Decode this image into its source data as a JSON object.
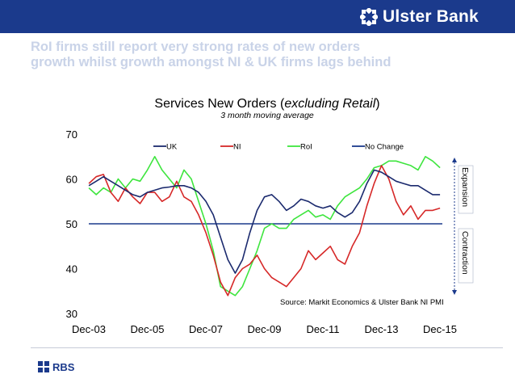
{
  "header": {
    "brand_name": "Ulster Bank",
    "brand_color": "#1b3a8c",
    "logo_icon": "ulster-bank-daisy-icon"
  },
  "headline": {
    "line1": "RoI firms still report very strong rates of new orders",
    "line2": "growth whilst growth amongst NI & UK firms lags behind"
  },
  "footer": {
    "brand_name": "RBS",
    "logo_icon": "rbs-daisy-icon"
  },
  "chart_data": {
    "type": "line",
    "title_main": "Services New Orders (",
    "title_italic": "excluding Retail",
    "title_close": ")",
    "subtitle": "3 month moving average",
    "source": "Source: Markit Economics & Ulster Bank NI PMI",
    "ylim": [
      30,
      70
    ],
    "yticks": [
      "30",
      "40",
      "50",
      "60",
      "70"
    ],
    "xlim": [
      2003.917,
      2016.0
    ],
    "xticks": [
      {
        "label": "Dec-03",
        "x": 2003.917
      },
      {
        "label": "Dec-05",
        "x": 2005.917
      },
      {
        "label": "Dec-07",
        "x": 2007.917
      },
      {
        "label": "Dec-09",
        "x": 2009.917
      },
      {
        "label": "Dec-11",
        "x": 2011.917
      },
      {
        "label": "Dec-13",
        "x": 2013.917
      },
      {
        "label": "Dec-15",
        "x": 2015.917
      }
    ],
    "annotations": {
      "expansion": "Expansion",
      "contraction": "Contraction"
    },
    "legend_position": "top",
    "reference_line": {
      "name": "No Change",
      "value": 50,
      "color": "#1b3a8c"
    },
    "series": [
      {
        "name": "UK",
        "color": "#1b2a6e",
        "points": [
          [
            2003.92,
            58.5
          ],
          [
            2004.17,
            59.5
          ],
          [
            2004.42,
            60.5
          ],
          [
            2004.67,
            59.5
          ],
          [
            2004.92,
            58.5
          ],
          [
            2005.17,
            57.5
          ],
          [
            2005.42,
            56.5
          ],
          [
            2005.67,
            56.0
          ],
          [
            2005.92,
            57.0
          ],
          [
            2006.17,
            57.5
          ],
          [
            2006.42,
            58.0
          ],
          [
            2006.67,
            58.2
          ],
          [
            2006.92,
            58.5
          ],
          [
            2007.17,
            58.5
          ],
          [
            2007.42,
            58.0
          ],
          [
            2007.67,
            57.0
          ],
          [
            2007.92,
            55.0
          ],
          [
            2008.17,
            52.0
          ],
          [
            2008.42,
            47.0
          ],
          [
            2008.67,
            42.0
          ],
          [
            2008.92,
            39.0
          ],
          [
            2009.17,
            42.0
          ],
          [
            2009.42,
            48.0
          ],
          [
            2009.67,
            53.0
          ],
          [
            2009.92,
            56.0
          ],
          [
            2010.17,
            56.5
          ],
          [
            2010.42,
            55.0
          ],
          [
            2010.67,
            53.0
          ],
          [
            2010.92,
            54.0
          ],
          [
            2011.17,
            55.5
          ],
          [
            2011.42,
            55.0
          ],
          [
            2011.67,
            54.0
          ],
          [
            2011.92,
            53.5
          ],
          [
            2012.17,
            54.0
          ],
          [
            2012.42,
            52.5
          ],
          [
            2012.67,
            51.5
          ],
          [
            2012.92,
            52.5
          ],
          [
            2013.17,
            55.0
          ],
          [
            2013.42,
            59.0
          ],
          [
            2013.67,
            62.0
          ],
          [
            2013.92,
            61.5
          ],
          [
            2014.17,
            60.5
          ],
          [
            2014.42,
            59.5
          ],
          [
            2014.67,
            59.0
          ],
          [
            2014.92,
            58.5
          ],
          [
            2015.17,
            58.5
          ],
          [
            2015.42,
            57.5
          ],
          [
            2015.67,
            56.5
          ],
          [
            2015.92,
            56.5
          ]
        ]
      },
      {
        "name": "NI",
        "color": "#d62828",
        "points": [
          [
            2003.92,
            59.0
          ],
          [
            2004.17,
            60.5
          ],
          [
            2004.42,
            61.0
          ],
          [
            2004.67,
            57.0
          ],
          [
            2004.92,
            55.0
          ],
          [
            2005.17,
            58.0
          ],
          [
            2005.42,
            56.0
          ],
          [
            2005.67,
            54.5
          ],
          [
            2005.92,
            57.0
          ],
          [
            2006.17,
            57.0
          ],
          [
            2006.42,
            55.0
          ],
          [
            2006.67,
            56.0
          ],
          [
            2006.92,
            59.5
          ],
          [
            2007.17,
            56.0
          ],
          [
            2007.42,
            55.0
          ],
          [
            2007.67,
            52.0
          ],
          [
            2007.92,
            48.0
          ],
          [
            2008.17,
            43.0
          ],
          [
            2008.42,
            37.0
          ],
          [
            2008.67,
            34.0
          ],
          [
            2008.92,
            38.0
          ],
          [
            2009.17,
            40.0
          ],
          [
            2009.42,
            41.0
          ],
          [
            2009.67,
            43.0
          ],
          [
            2009.92,
            40.0
          ],
          [
            2010.17,
            38.0
          ],
          [
            2010.42,
            37.0
          ],
          [
            2010.67,
            36.0
          ],
          [
            2010.92,
            38.0
          ],
          [
            2011.17,
            40.0
          ],
          [
            2011.42,
            44.0
          ],
          [
            2011.67,
            42.0
          ],
          [
            2011.92,
            43.5
          ],
          [
            2012.17,
            45.0
          ],
          [
            2012.42,
            42.0
          ],
          [
            2012.67,
            41.0
          ],
          [
            2012.92,
            45.0
          ],
          [
            2013.17,
            48.0
          ],
          [
            2013.42,
            54.0
          ],
          [
            2013.67,
            59.0
          ],
          [
            2013.92,
            63.0
          ],
          [
            2014.17,
            60.0
          ],
          [
            2014.42,
            55.0
          ],
          [
            2014.67,
            52.0
          ],
          [
            2014.92,
            54.0
          ],
          [
            2015.17,
            51.0
          ],
          [
            2015.42,
            53.0
          ],
          [
            2015.67,
            53.0
          ],
          [
            2015.92,
            53.5
          ]
        ]
      },
      {
        "name": "RoI",
        "color": "#3ee53e",
        "points": [
          [
            2003.92,
            58.0
          ],
          [
            2004.17,
            56.5
          ],
          [
            2004.42,
            58.0
          ],
          [
            2004.67,
            57.0
          ],
          [
            2004.92,
            60.0
          ],
          [
            2005.17,
            58.0
          ],
          [
            2005.42,
            60.0
          ],
          [
            2005.67,
            59.5
          ],
          [
            2005.92,
            62.0
          ],
          [
            2006.17,
            65.0
          ],
          [
            2006.42,
            62.0
          ],
          [
            2006.67,
            60.0
          ],
          [
            2006.92,
            58.0
          ],
          [
            2007.17,
            62.0
          ],
          [
            2007.42,
            60.0
          ],
          [
            2007.67,
            55.0
          ],
          [
            2007.92,
            50.0
          ],
          [
            2008.17,
            44.0
          ],
          [
            2008.42,
            36.0
          ],
          [
            2008.67,
            35.0
          ],
          [
            2008.92,
            34.0
          ],
          [
            2009.17,
            36.0
          ],
          [
            2009.42,
            40.0
          ],
          [
            2009.67,
            44.0
          ],
          [
            2009.92,
            49.0
          ],
          [
            2010.17,
            50.0
          ],
          [
            2010.42,
            49.0
          ],
          [
            2010.67,
            49.0
          ],
          [
            2010.92,
            51.0
          ],
          [
            2011.17,
            52.0
          ],
          [
            2011.42,
            53.0
          ],
          [
            2011.67,
            51.5
          ],
          [
            2011.92,
            52.0
          ],
          [
            2012.17,
            51.0
          ],
          [
            2012.42,
            54.0
          ],
          [
            2012.67,
            56.0
          ],
          [
            2012.92,
            57.0
          ],
          [
            2013.17,
            58.0
          ],
          [
            2013.42,
            60.0
          ],
          [
            2013.67,
            62.5
          ],
          [
            2013.92,
            63.0
          ],
          [
            2014.17,
            64.0
          ],
          [
            2014.42,
            64.0
          ],
          [
            2014.67,
            63.5
          ],
          [
            2014.92,
            63.0
          ],
          [
            2015.17,
            62.0
          ],
          [
            2015.42,
            65.0
          ],
          [
            2015.67,
            64.0
          ],
          [
            2015.92,
            62.5
          ]
        ]
      }
    ]
  }
}
